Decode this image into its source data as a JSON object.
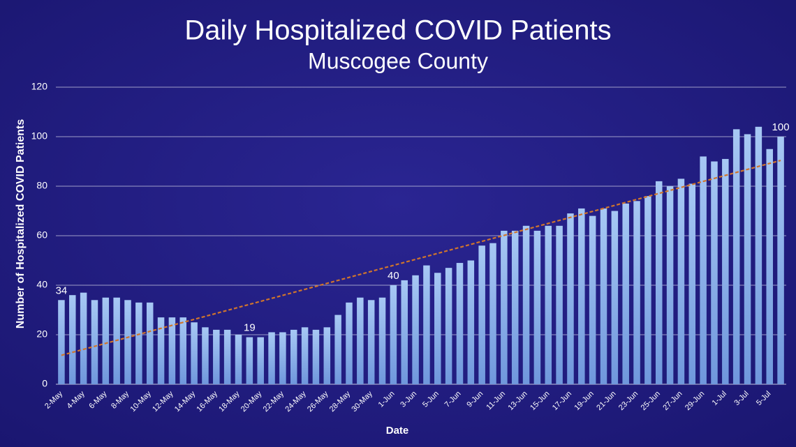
{
  "chart_data": {
    "type": "bar",
    "title": "Daily Hospitalized COVID Patients",
    "subtitle": "Muscogee County",
    "x_label": "Date",
    "y_label": "Number of Hospitalized COVID Patients",
    "categories": [
      "2-May",
      null,
      "4-May",
      null,
      "6-May",
      null,
      "8-May",
      null,
      "10-May",
      null,
      "12-May",
      null,
      "14-May",
      null,
      "16-May",
      null,
      "18-May",
      null,
      "20-May",
      null,
      "22-May",
      null,
      "24-May",
      null,
      "26-May",
      null,
      "28-May",
      null,
      "30-May",
      null,
      "1-Jun",
      null,
      "3-Jun",
      null,
      "5-Jun",
      null,
      "7-Jun",
      null,
      "9-Jun",
      null,
      "11-Jun",
      null,
      "13-Jun",
      null,
      "15-Jun",
      null,
      "17-Jun",
      null,
      "19-Jun",
      null,
      "21-Jun",
      null,
      "23-Jun",
      null,
      "25-Jun",
      null,
      "27-Jun",
      null,
      "29-Jun",
      null,
      "1-Jul",
      null,
      "3-Jul",
      null,
      "5-Jul",
      null
    ],
    "values": [
      34,
      36,
      37,
      34,
      35,
      35,
      34,
      33,
      33,
      27,
      27,
      27,
      25,
      23,
      22,
      22,
      20,
      19,
      19,
      21,
      21,
      22,
      23,
      22,
      23,
      28,
      33,
      35,
      34,
      35,
      40,
      42,
      44,
      48,
      45,
      47,
      49,
      50,
      56,
      57,
      62,
      62,
      64,
      62,
      64,
      64,
      69,
      71,
      68,
      71,
      70,
      73,
      74,
      76,
      82,
      80,
      83,
      81,
      92,
      90,
      91,
      103,
      101,
      104,
      95,
      100
    ],
    "value_labels": [
      "34",
      null,
      null,
      null,
      null,
      null,
      null,
      null,
      null,
      null,
      null,
      null,
      null,
      null,
      null,
      null,
      null,
      "19",
      null,
      null,
      null,
      null,
      null,
      null,
      null,
      null,
      null,
      null,
      null,
      null,
      "40",
      null,
      null,
      null,
      null,
      null,
      null,
      null,
      null,
      null,
      null,
      null,
      null,
      null,
      null,
      null,
      null,
      null,
      null,
      null,
      null,
      null,
      null,
      null,
      null,
      null,
      null,
      null,
      null,
      null,
      null,
      null,
      null,
      null,
      null,
      "100"
    ],
    "color": "#8fb6ee",
    "trendline": true,
    "trendline_color": "#d0752c",
    "ylim": [
      0,
      120
    ],
    "yticks": [
      0,
      20,
      40,
      60,
      80,
      100,
      120
    ],
    "grid": true
  }
}
